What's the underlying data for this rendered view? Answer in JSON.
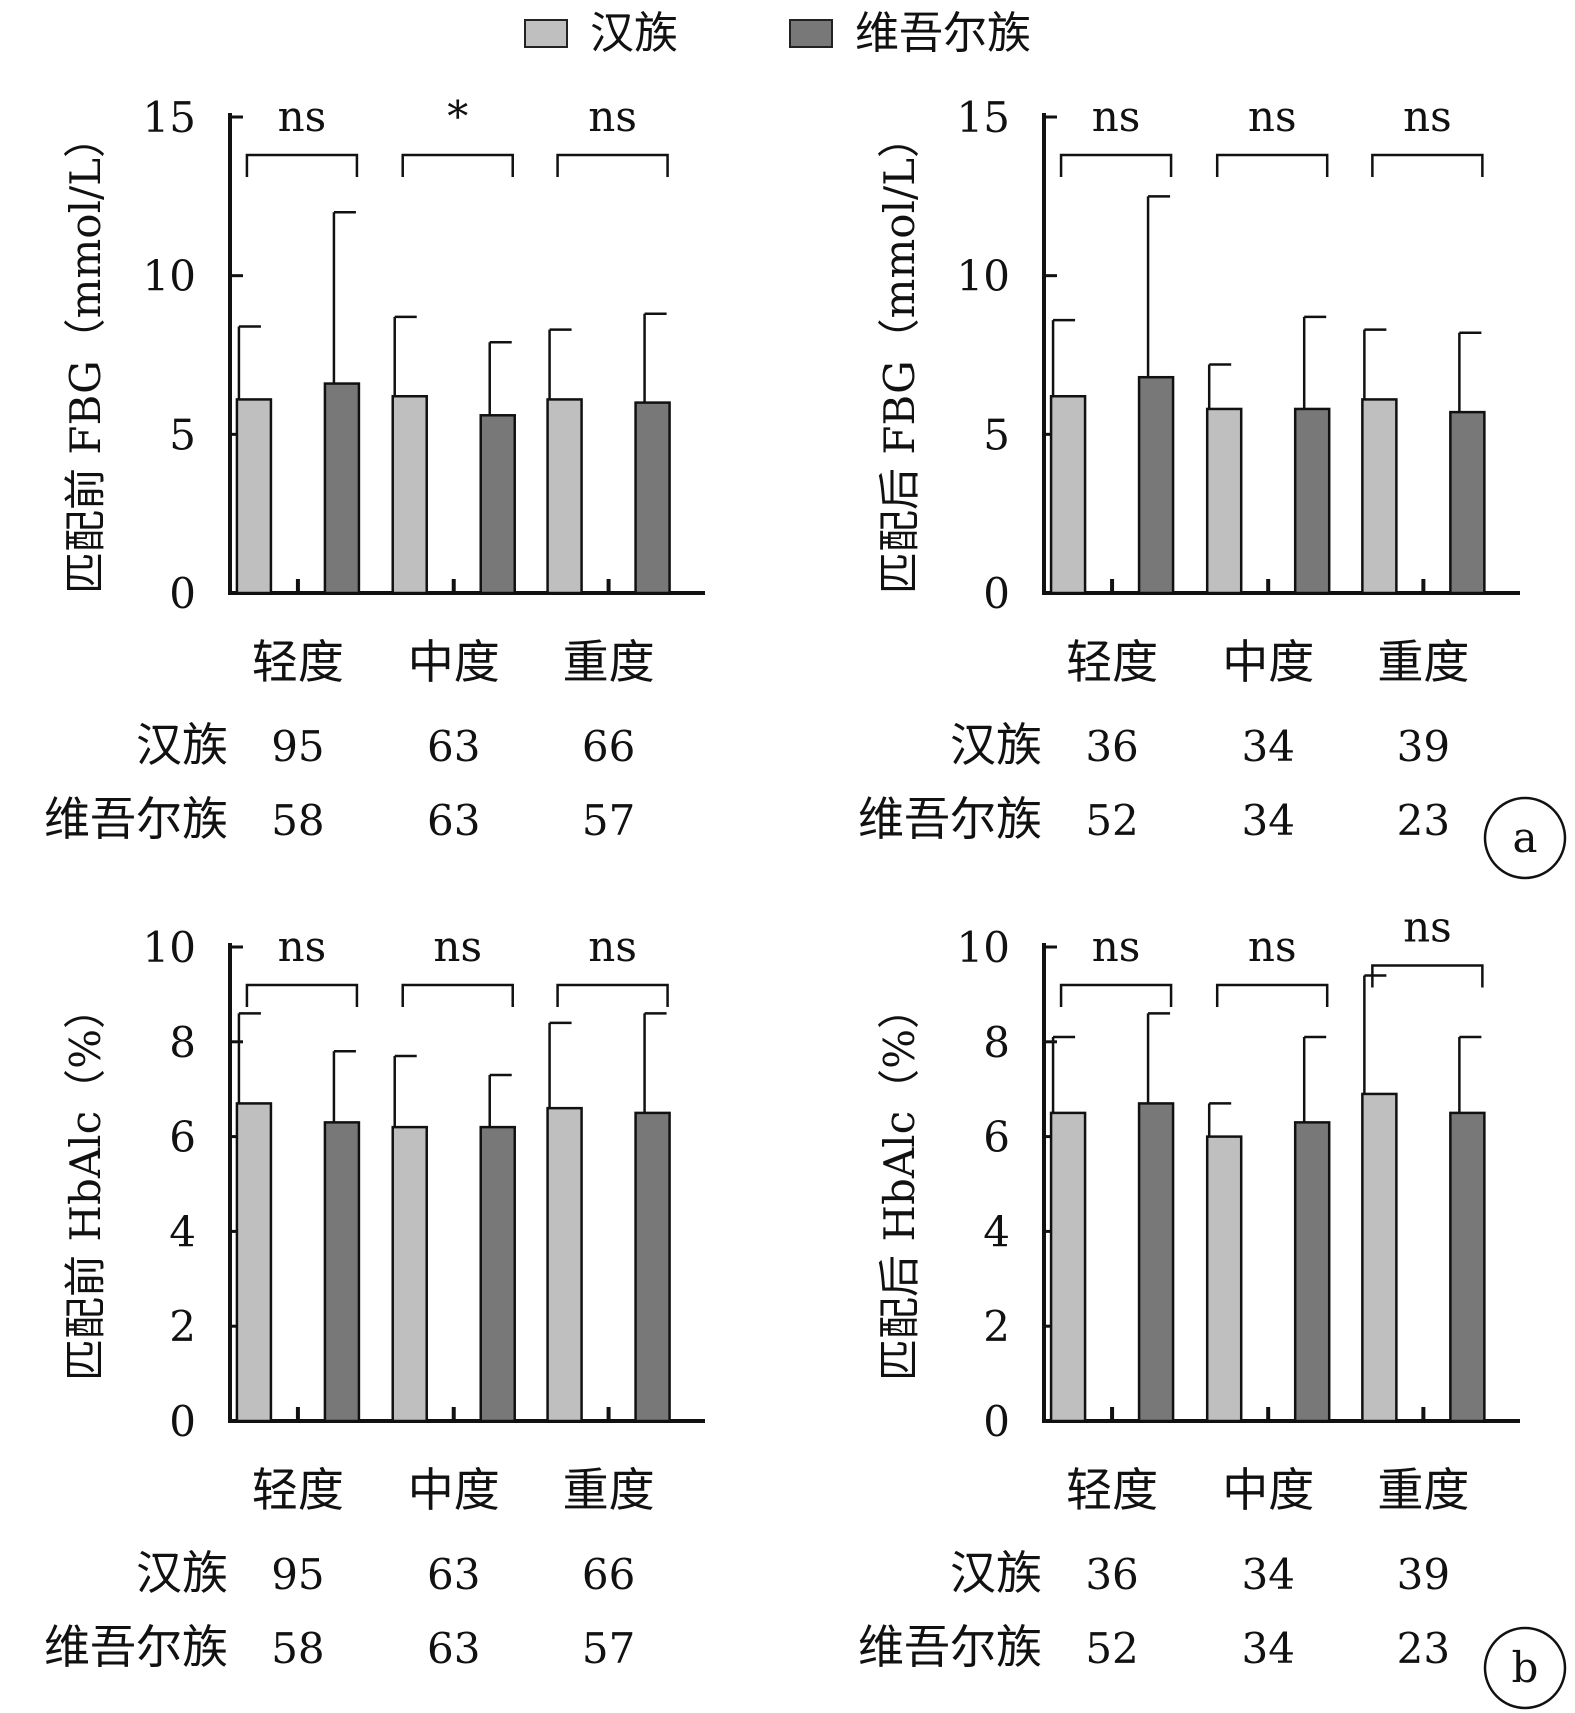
{
  "legend": {
    "position": "top-center",
    "items": [
      {
        "label": "汉族",
        "color": "#bfbfbf"
      },
      {
        "label": "维吾尔族",
        "color": "#787878"
      }
    ]
  },
  "table_row_labels": [
    "汉族",
    "维吾尔族"
  ],
  "panel_labels": [
    "a",
    "b"
  ],
  "chart_data": [
    {
      "type": "bar",
      "ylabel": "匹配前 FBG（mmol/L）",
      "ylim": [
        0,
        15
      ],
      "yticks": [
        0,
        5,
        10,
        15
      ],
      "grid": false,
      "categories": [
        "轻度",
        "中度",
        "重度"
      ],
      "series": [
        {
          "name": "汉族",
          "values": [
            6.1,
            6.2,
            6.1
          ],
          "errors": [
            2.3,
            2.5,
            2.2
          ]
        },
        {
          "name": "维吾尔族",
          "values": [
            6.6,
            5.6,
            6.0
          ],
          "errors": [
            5.4,
            2.3,
            2.8
          ]
        }
      ],
      "significance": [
        "ns",
        "*",
        "ns"
      ],
      "counts": {
        "汉族": [
          "95",
          "63",
          "66"
        ],
        "维吾尔族": [
          "58",
          "63",
          "57"
        ]
      }
    },
    {
      "type": "bar",
      "ylabel": "匹配后 FBG（mmol/L）",
      "ylim": [
        0,
        15
      ],
      "yticks": [
        0,
        5,
        10,
        15
      ],
      "grid": false,
      "categories": [
        "轻度",
        "中度",
        "重度"
      ],
      "series": [
        {
          "name": "汉族",
          "values": [
            6.2,
            5.8,
            6.1
          ],
          "errors": [
            2.4,
            1.4,
            2.2
          ]
        },
        {
          "name": "维吾尔族",
          "values": [
            6.8,
            5.8,
            5.7
          ],
          "errors": [
            5.7,
            2.9,
            2.5
          ]
        }
      ],
      "significance": [
        "ns",
        "ns",
        "ns"
      ],
      "counts": {
        "汉族": [
          "36",
          "34",
          "39"
        ],
        "维吾尔族": [
          "52",
          "34",
          "23"
        ]
      }
    },
    {
      "type": "bar",
      "ylabel": "匹配前 HbAlc（%）",
      "ylim": [
        0,
        10
      ],
      "yticks": [
        0,
        2,
        4,
        6,
        8,
        10
      ],
      "grid": false,
      "categories": [
        "轻度",
        "中度",
        "重度"
      ],
      "series": [
        {
          "name": "汉族",
          "values": [
            6.7,
            6.2,
            6.6
          ],
          "errors": [
            1.9,
            1.5,
            1.8
          ]
        },
        {
          "name": "维吾尔族",
          "values": [
            6.3,
            6.2,
            6.5
          ],
          "errors": [
            1.5,
            1.1,
            2.1
          ]
        }
      ],
      "significance": [
        "ns",
        "ns",
        "ns"
      ],
      "counts": {
        "汉族": [
          "95",
          "63",
          "66"
        ],
        "维吾尔族": [
          "58",
          "63",
          "57"
        ]
      }
    },
    {
      "type": "bar",
      "ylabel": "匹配后 HbAlc（%）",
      "ylim": [
        0,
        10
      ],
      "yticks": [
        0,
        2,
        4,
        6,
        8,
        10
      ],
      "grid": false,
      "categories": [
        "轻度",
        "中度",
        "重度"
      ],
      "series": [
        {
          "name": "汉族",
          "values": [
            6.5,
            6.0,
            6.9
          ],
          "errors": [
            1.6,
            0.7,
            2.5
          ]
        },
        {
          "name": "维吾尔族",
          "values": [
            6.7,
            6.3,
            6.5
          ],
          "errors": [
            1.9,
            1.8,
            1.6
          ]
        }
      ],
      "significance": [
        "ns",
        "ns",
        "ns"
      ],
      "counts": {
        "汉族": [
          "36",
          "34",
          "39"
        ],
        "维吾尔族": [
          "52",
          "34",
          "23"
        ]
      }
    }
  ]
}
